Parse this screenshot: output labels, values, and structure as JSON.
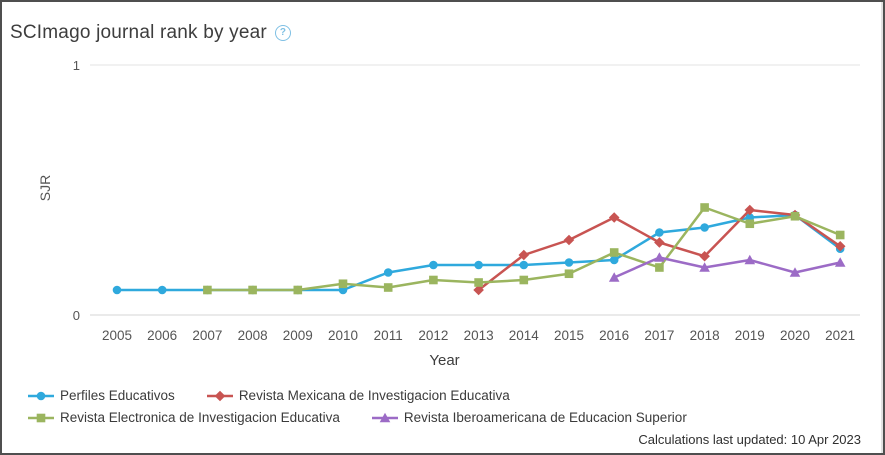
{
  "header": {
    "title": "SCImago journal rank by year",
    "help_glyph": "?"
  },
  "chart_data": {
    "type": "line",
    "title": "SCImago journal rank by year",
    "xlabel": "Year",
    "ylabel": "SJR",
    "ylim": [
      0,
      1
    ],
    "yticks": [
      "1",
      "0"
    ],
    "grid": "horizontal-minimal",
    "legend_position": "bottom-left",
    "x": [
      2005,
      2006,
      2007,
      2008,
      2009,
      2010,
      2011,
      2012,
      2013,
      2014,
      2015,
      2016,
      2017,
      2018,
      2019,
      2020,
      2021
    ],
    "series": [
      {
        "name": "Perfiles Educativos",
        "color": "#2FA9DD",
        "marker": "circle",
        "values": [
          0.1,
          0.1,
          0.1,
          0.1,
          0.1,
          0.1,
          0.17,
          0.2,
          0.2,
          0.2,
          0.21,
          0.22,
          0.33,
          0.35,
          0.39,
          0.4,
          0.265
        ]
      },
      {
        "name": "Revista Mexicana de Investigacion Educativa",
        "color": "#C85452",
        "marker": "diamond",
        "values": [
          null,
          null,
          null,
          null,
          null,
          null,
          null,
          null,
          0.1,
          0.24,
          0.3,
          0.39,
          0.29,
          0.235,
          0.42,
          0.4,
          0.275
        ]
      },
      {
        "name": "Revista Electronica de Investigacion Educativa",
        "color": "#9BB55F",
        "marker": "square",
        "values": [
          null,
          null,
          0.1,
          0.1,
          0.1,
          0.125,
          0.11,
          0.14,
          0.13,
          0.14,
          0.165,
          0.25,
          0.19,
          0.43,
          0.365,
          0.395,
          0.32
        ]
      },
      {
        "name": "Revista Iberoamericana de Educacion Superior",
        "color": "#9C6BC6",
        "marker": "triangle",
        "values": [
          null,
          null,
          null,
          null,
          null,
          null,
          null,
          null,
          null,
          null,
          null,
          0.15,
          0.23,
          0.19,
          0.22,
          0.17,
          0.21
        ]
      }
    ]
  },
  "footer": {
    "updated_note": "Calculations last updated: 10 Apr 2023"
  }
}
